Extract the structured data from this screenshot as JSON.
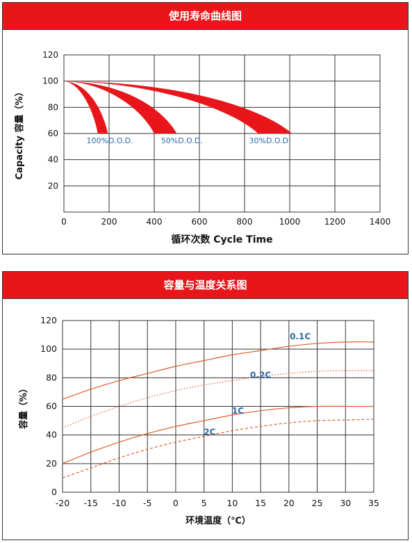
{
  "chart1": {
    "header": "使用寿命曲线图",
    "chart_data": {
      "type": "area",
      "xlabel": "循环次数 Cycle Time",
      "ylabel": "Capacity 容量（%）",
      "xlim": [
        0,
        1400
      ],
      "ylim": [
        0,
        120
      ],
      "x_ticks": [
        "0",
        "200",
        "400",
        "600",
        "800",
        "1000",
        "1200",
        "1400"
      ],
      "y_ticks": [
        "20",
        "40",
        "60",
        "80",
        "100",
        "120"
      ],
      "grid": true,
      "color": "#e8161b",
      "series": [
        {
          "name": "100%D.O.D.",
          "end_range": [
            150,
            195
          ],
          "end_value": 60,
          "label_x": 100
        },
        {
          "name": "50%D.O.D.",
          "end_range": [
            400,
            500
          ],
          "end_value": 60,
          "label_x": 430
        },
        {
          "name": "30%D.O.D.",
          "end_range": [
            860,
            1010
          ],
          "end_value": 60,
          "label_x": 820
        }
      ]
    }
  },
  "chart2": {
    "header": "容量与温度关系图",
    "chart_data": {
      "type": "line",
      "xlabel": "环境温度（℃）",
      "ylabel": "容量（%）",
      "xlim": [
        -20,
        35
      ],
      "ylim": [
        0,
        120
      ],
      "x_ticks": [
        "-20",
        "-15",
        "-10",
        "-5",
        "0",
        "5",
        "10",
        "15",
        "20",
        "25",
        "30",
        "35"
      ],
      "y_ticks": [
        "0",
        "20",
        "40",
        "60",
        "80",
        "100",
        "120"
      ],
      "grid": true,
      "line_color": "#e2592a",
      "label_color": "#2b6aa6",
      "x": [
        -20,
        -15,
        -10,
        -5,
        0,
        5,
        10,
        15,
        20,
        25,
        30,
        35
      ],
      "series": [
        {
          "name": "0.1C",
          "style": "solid",
          "values": [
            65,
            72,
            78,
            83,
            88,
            92,
            96,
            99,
            102,
            104,
            105,
            105
          ],
          "label_at": [
            22,
            107
          ]
        },
        {
          "name": "0.2C",
          "style": "dotted",
          "values": [
            45,
            53,
            60,
            66,
            71,
            75,
            78,
            81,
            83,
            84.5,
            85,
            85
          ],
          "label_at": [
            15,
            80
          ]
        },
        {
          "name": "1C",
          "style": "solid",
          "values": [
            20,
            28,
            35,
            41,
            46,
            50,
            54,
            57,
            59,
            60,
            60,
            60
          ],
          "label_at": [
            11,
            55
          ]
        },
        {
          "name": "2C",
          "style": "dashed",
          "values": [
            10,
            17,
            24,
            30,
            35,
            39,
            43,
            46,
            48.5,
            50,
            50.5,
            51
          ],
          "label_at": [
            6,
            40
          ]
        }
      ]
    }
  }
}
